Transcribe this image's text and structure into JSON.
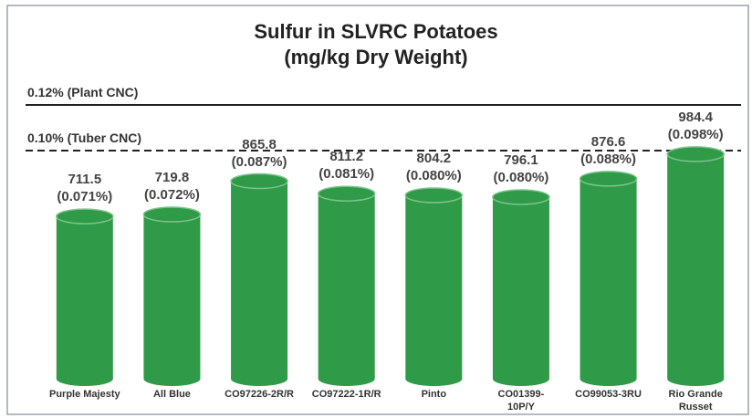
{
  "chart_data": {
    "type": "bar",
    "title": "Sulfur in SLVRC Potatoes",
    "subtitle": "(mg/kg Dry Weight)",
    "categories": [
      "Purple Majesty",
      "All Blue",
      "CO97226-2R/R",
      "CO97222-1R/R",
      "Pinto",
      "CO01399-10P/Y",
      "CO99053-3RU",
      "Rio Grande Russet"
    ],
    "values": [
      711.5,
      719.8,
      865.8,
      811.2,
      804.2,
      796.1,
      876.6,
      984.4
    ],
    "value_labels": [
      "711.5\n(0.071%)",
      "719.8\n(0.072%)",
      "865.8\n(0.087%)",
      "811.2\n(0.081%)",
      "804.2\n(0.080%)",
      "796.1\n(0.080%)",
      "876.6\n(0.088%)",
      "984.4\n(0.098%)"
    ],
    "color": "#2f9a47",
    "ylim": [
      0,
      1200
    ],
    "reference_lines": [
      {
        "label": "0.12% (Plant CNC)",
        "value": 1200,
        "style": "solid"
      },
      {
        "label": "0.10% (Tuber CNC)",
        "value": 1000,
        "style": "dashed"
      }
    ]
  }
}
